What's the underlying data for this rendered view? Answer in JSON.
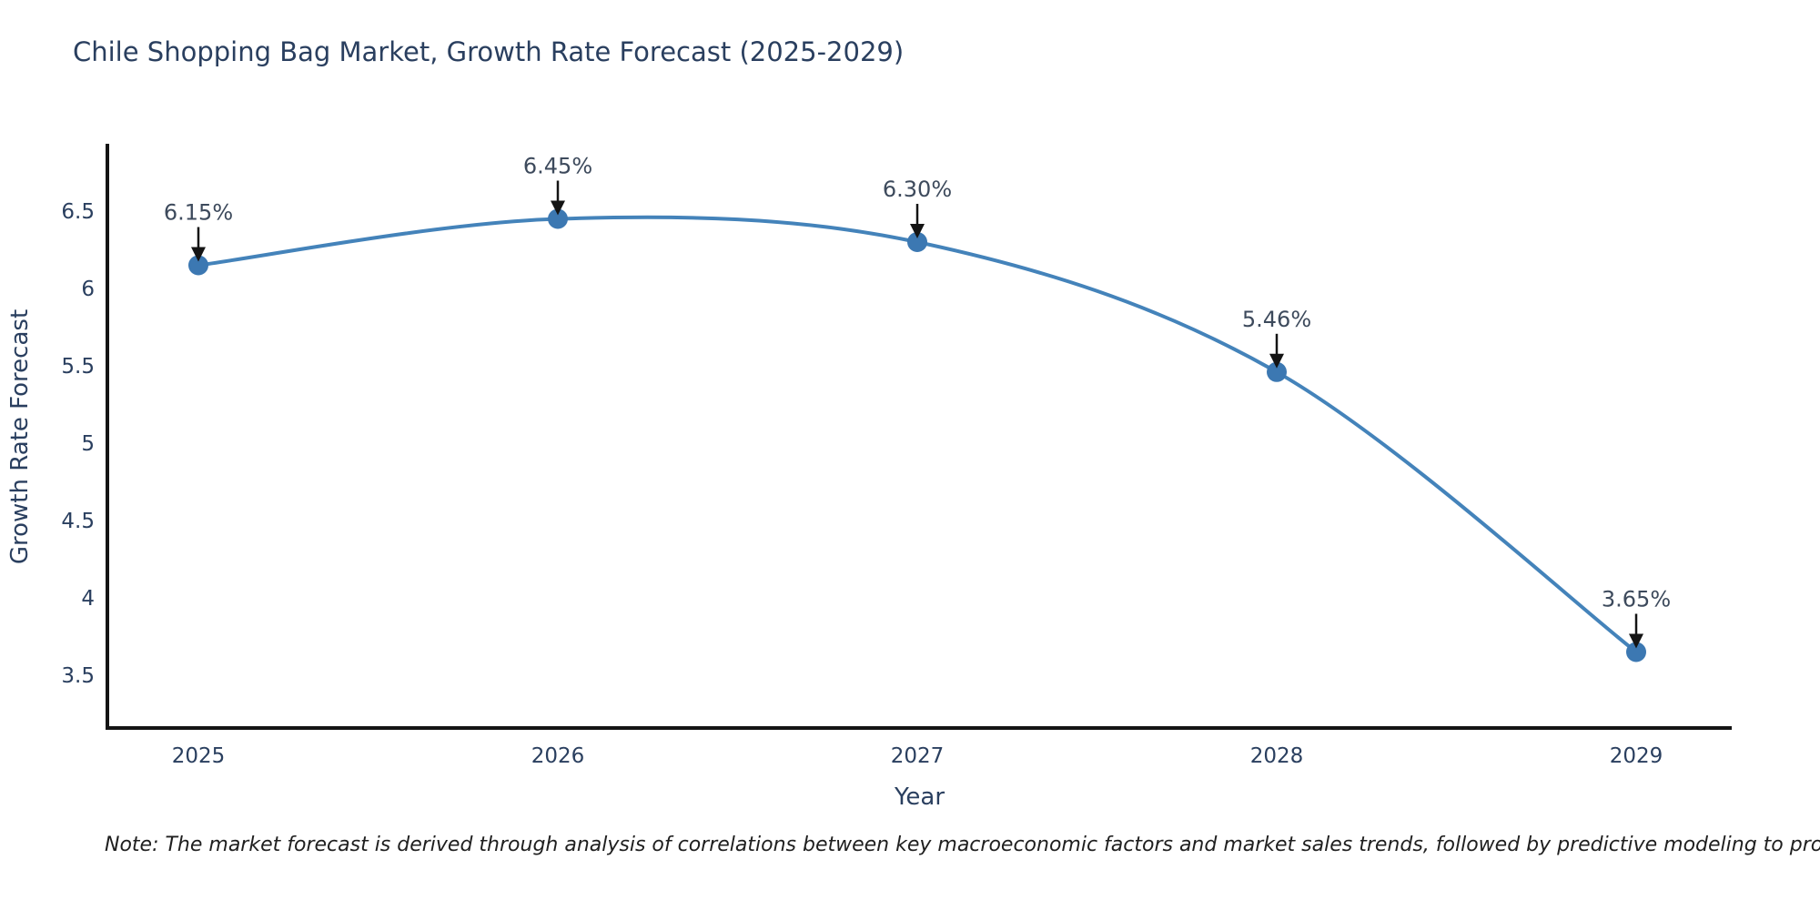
{
  "header": {
    "title": "Chile Shopping Bag Market, Growth Rate Forecast (2025-2029)"
  },
  "footer": {
    "note": "Note: The market forecast is derived through analysis of correlations between key macroeconomic factors and market sales trends, followed by predictive modeling to project future sales"
  },
  "chart_data": {
    "type": "line",
    "title": "Chile Shopping Bag Market, Growth Rate Forecast (2025-2029)",
    "xlabel": "Year",
    "ylabel": "Growth Rate Forecast",
    "x": [
      2025,
      2026,
      2027,
      2028,
      2029
    ],
    "series": [
      {
        "name": "Growth Rate Forecast",
        "values": [
          6.15,
          6.45,
          6.3,
          5.46,
          3.65
        ]
      }
    ],
    "point_labels": [
      "6.15%",
      "6.45%",
      "6.30%",
      "5.46%",
      "3.65%"
    ],
    "yticks": [
      6.5,
      6,
      5.5,
      5,
      4.5,
      4,
      3.5
    ],
    "ylim": [
      3.15,
      6.95
    ],
    "line_shape": "spline",
    "grid": false,
    "legend_position": "none",
    "colors": {
      "line": "#4483ba",
      "marker": "#3c78b2",
      "axis": "#141414",
      "tick_text": "#2a3f5f",
      "axis_title_text": "#2a3f5f",
      "annotation_text": "#3d4a5c",
      "arrow": "#141414"
    }
  }
}
